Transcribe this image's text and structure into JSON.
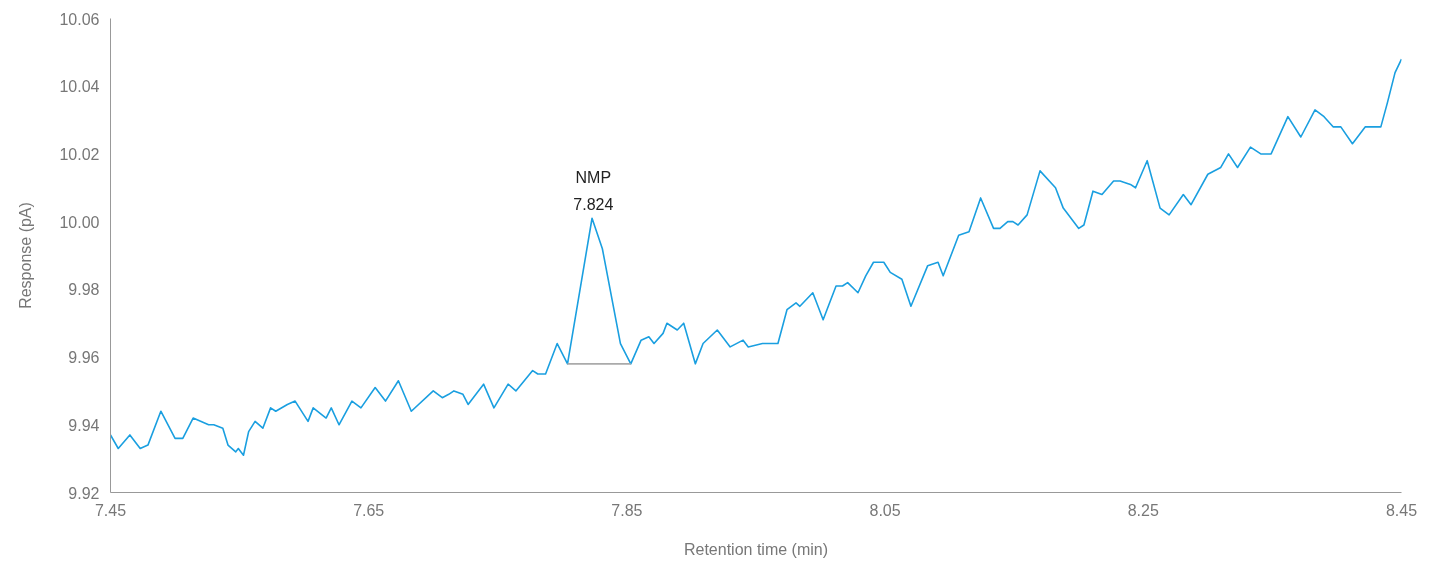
{
  "chart_data": {
    "type": "line",
    "xlabel": "Retention time (min)",
    "ylabel": "Response (pA)",
    "xlim": [
      7.45,
      8.45
    ],
    "xticks": [
      7.45,
      7.65,
      7.85,
      8.05,
      8.25,
      8.45
    ],
    "ylim": [
      9.92,
      10.06
    ],
    "yticks": [
      9.92,
      9.94,
      9.96,
      9.98,
      {
        "value": 10.0,
        "label": "10.00"
      },
      10.02,
      10.04,
      10.06
    ],
    "grid": false,
    "annotations": [
      {
        "text": "NMP\n7.824",
        "x": 7.824,
        "y": 10.001
      }
    ],
    "series": [
      {
        "color": "#1a9fe0",
        "x": [
          7.45,
          7.456,
          7.465,
          7.473,
          7.479,
          7.489,
          7.5,
          7.506,
          7.514,
          7.526,
          7.53,
          7.537,
          7.541,
          7.547,
          7.549,
          7.553,
          7.557,
          7.562,
          7.568,
          7.574,
          7.578,
          7.587,
          7.593,
          7.603,
          7.607,
          7.617,
          7.621,
          7.627,
          7.637,
          7.644,
          7.655,
          7.663,
          7.673,
          7.683,
          7.7,
          7.707,
          7.712,
          7.716,
          7.723,
          7.727,
          7.739,
          7.747,
          7.758,
          7.764,
          7.777,
          7.781,
          7.787,
          7.796,
          7.804,
          7.823,
          7.831,
          7.845,
          7.853,
          7.861,
          7.867,
          7.871,
          7.878,
          7.881,
          7.889,
          7.894,
          7.903,
          7.909,
          7.92,
          7.93,
          7.94,
          7.944,
          7.955,
          7.959,
          7.967,
          7.974,
          7.981,
          7.984,
          7.994,
          8.002,
          8.012,
          8.017,
          8.021,
          8.029,
          8.035,
          8.041,
          8.049,
          8.054,
          8.063,
          8.07,
          8.083,
          8.091,
          8.095,
          8.107,
          8.115,
          8.124,
          8.134,
          8.139,
          8.145,
          8.149,
          8.153,
          8.16,
          8.17,
          8.182,
          8.188,
          8.2,
          8.204,
          8.211,
          8.218,
          8.227,
          8.232,
          8.24,
          8.244,
          8.253,
          8.263,
          8.27,
          8.281,
          8.287,
          8.3,
          8.31,
          8.316,
          8.323,
          8.333,
          8.341,
          8.349,
          8.362,
          8.372,
          8.383,
          8.39,
          8.397,
          8.403,
          8.412,
          8.422,
          8.428,
          8.434,
          8.439,
          8.445,
          8.45
        ],
        "values": [
          9.937,
          9.933,
          9.937,
          9.933,
          9.934,
          9.944,
          9.936,
          9.936,
          9.942,
          9.94,
          9.94,
          9.939,
          9.934,
          9.932,
          9.933,
          9.931,
          9.938,
          9.941,
          9.939,
          9.945,
          9.944,
          9.946,
          9.947,
          9.941,
          9.945,
          9.942,
          9.945,
          9.94,
          9.947,
          9.945,
          9.951,
          9.947,
          9.953,
          9.944,
          9.95,
          9.948,
          9.949,
          9.95,
          9.949,
          9.946,
          9.952,
          9.945,
          9.952,
          9.95,
          9.956,
          9.955,
          9.955,
          9.964,
          9.958,
          10.001,
          9.992,
          9.964,
          9.958,
          9.965,
          9.966,
          9.964,
          9.967,
          9.97,
          9.968,
          9.97,
          9.958,
          9.964,
          9.968,
          9.963,
          9.965,
          9.963,
          9.964,
          9.964,
          9.964,
          9.974,
          9.976,
          9.975,
          9.979,
          9.971,
          9.981,
          9.981,
          9.982,
          9.979,
          9.984,
          9.988,
          9.988,
          9.985,
          9.983,
          9.975,
          9.987,
          9.988,
          9.984,
          9.996,
          9.997,
          10.007,
          9.998,
          9.998,
          10.0,
          10.0,
          9.999,
          10.002,
          10.015,
          10.01,
          10.004,
          9.998,
          9.999,
          10.009,
          10.008,
          10.012,
          10.012,
          10.011,
          10.01,
          10.018,
          10.004,
          10.002,
          10.008,
          10.005,
          10.014,
          10.016,
          10.02,
          10.016,
          10.022,
          10.02,
          10.02,
          10.031,
          10.025,
          10.033,
          10.031,
          10.028,
          10.028,
          10.023,
          10.028,
          10.028,
          10.028,
          10.035,
          10.044,
          10.048
        ]
      },
      {
        "color": "#aaaaaa",
        "x": [
          7.804,
          7.853
        ],
        "values": [
          9.958,
          9.958
        ]
      }
    ]
  }
}
